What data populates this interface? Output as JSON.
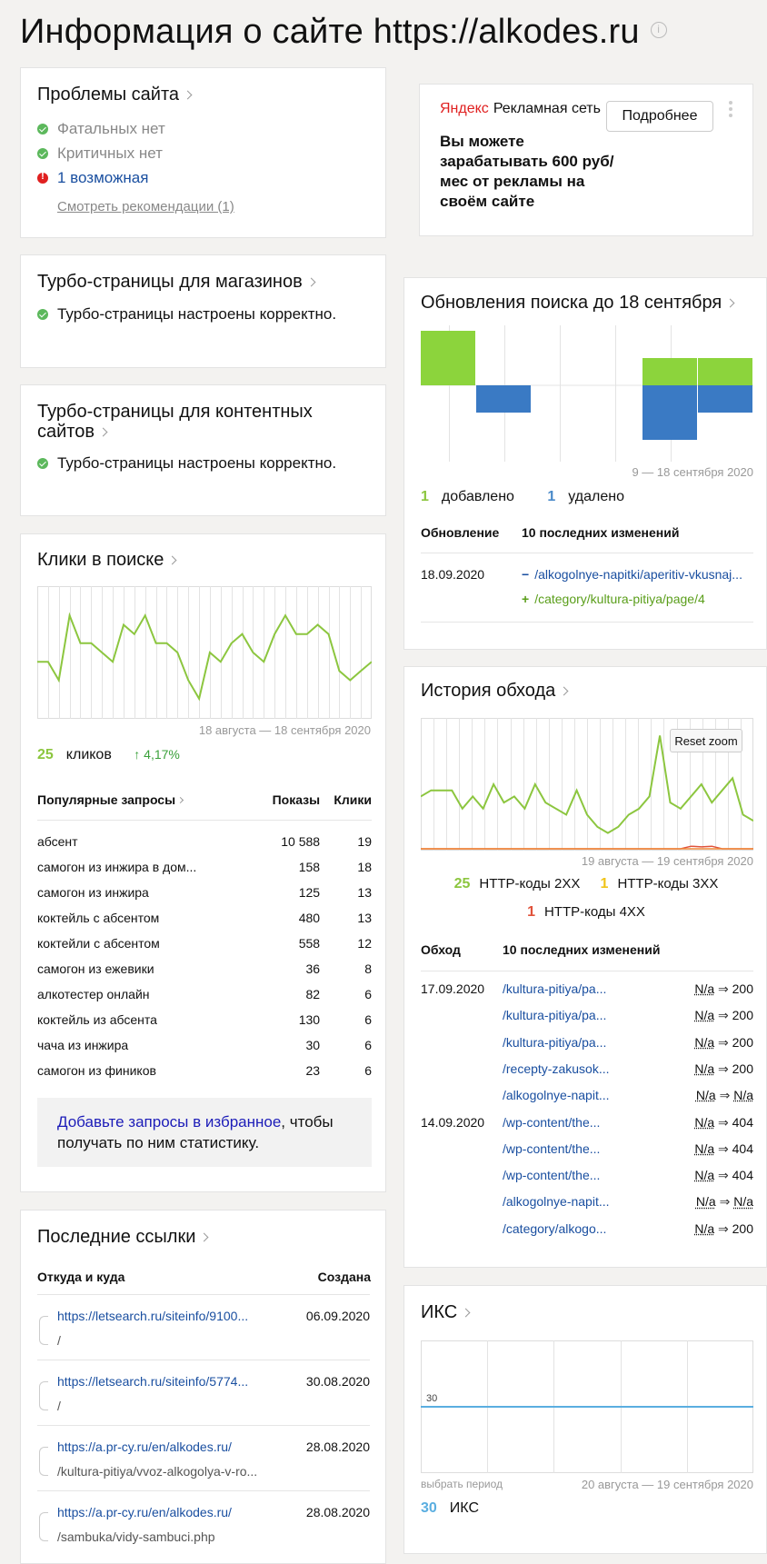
{
  "page": {
    "title": "Информация о сайте https://alkodes.ru",
    "info_icon": "info-icon"
  },
  "problems": {
    "title": "Проблемы сайта",
    "items": [
      {
        "icon": "check-icon",
        "text": "Фатальных нет"
      },
      {
        "icon": "check-icon",
        "text": "Критичных нет"
      },
      {
        "icon": "warning-icon",
        "text": "1 возможная"
      }
    ],
    "link": "Смотреть рекомендации (1)"
  },
  "ad": {
    "brand": "Яндекс",
    "network": "Рекламная сеть",
    "button": "Подробнее",
    "text": "Вы можете зарабатывать 600 руб/мес от рекламы на своём сайте"
  },
  "turbo_shops": {
    "title": "Турбо-страницы для магазинов",
    "status": "Турбо-страницы настроены корректно."
  },
  "turbo_content": {
    "title_line1": "Турбо-страницы для контентных",
    "title_line2": "сайтов",
    "status": "Турбо-страницы настроены корректно."
  },
  "clicks": {
    "title": "Клики в поиске",
    "period": "18 августа — 18 сентября 2020",
    "count": "25",
    "count_label": "кликов",
    "change": "↑ 4,17%",
    "queries_header": "Популярные запросы",
    "col_shows": "Показы",
    "col_clicks": "Клики",
    "rows": [
      {
        "q": "абсент",
        "shows": "10 588",
        "clicks": "19"
      },
      {
        "q": "самогон из инжира в дом...",
        "shows": "158",
        "clicks": "18"
      },
      {
        "q": "самогон из инжира",
        "shows": "125",
        "clicks": "13"
      },
      {
        "q": "коктейль с абсентом",
        "shows": "480",
        "clicks": "13"
      },
      {
        "q": "коктейли с абсентом",
        "shows": "558",
        "clicks": "12"
      },
      {
        "q": "самогон из ежевики",
        "shows": "36",
        "clicks": "8"
      },
      {
        "q": "алкотестер онлайн",
        "shows": "82",
        "clicks": "6"
      },
      {
        "q": "коктейль из абсента",
        "shows": "130",
        "clicks": "6"
      },
      {
        "q": "чача из инжира",
        "shows": "30",
        "clicks": "6"
      },
      {
        "q": "самогон из фиников",
        "shows": "23",
        "clicks": "6"
      }
    ],
    "favorite_link": "Добавьте запросы в избранное",
    "favorite_rest": ", чтобы получать по ним статистику."
  },
  "links": {
    "title": "Последние ссылки",
    "col_from": "Откуда и куда",
    "col_created": "Создана",
    "rows": [
      {
        "from": "https://letsearch.ru/siteinfo/9100...",
        "to": "/",
        "date": "06.09.2020"
      },
      {
        "from": "https://letsearch.ru/siteinfo/5774...",
        "to": "/",
        "date": "30.08.2020"
      },
      {
        "from": "https://a.pr-cy.ru/en/alkodes.ru/",
        "to": "/kultura-pitiya/vvoz-alkogolya-v-ro...",
        "date": "28.08.2020"
      },
      {
        "from": "https://a.pr-cy.ru/en/alkodes.ru/",
        "to": "/sambuka/vidy-sambuci.php",
        "date": "28.08.2020"
      }
    ]
  },
  "search_updates": {
    "title": "Обновления поиска до 18 сентября",
    "period": "9 — 18 сентября 2020",
    "added_n": "1",
    "added_label": "добавлено",
    "removed_n": "1",
    "removed_label": "удалено",
    "col_update": "Обновление",
    "col_changes": "10 последних изменений",
    "date": "18.09.2020",
    "changes": [
      {
        "sign": "−",
        "url": "/alkogolnye-napitki/aperitiv-vkusnaj..."
      },
      {
        "sign": "+",
        "url": "/category/kultura-pitiya/page/4"
      }
    ]
  },
  "crawl": {
    "title": "История обхода",
    "reset_zoom": "Reset zoom",
    "period": "19 августа — 19 сентября 2020",
    "legend": [
      {
        "n": "25",
        "label": "HTTP-коды 2XX",
        "color": "#8cc63f"
      },
      {
        "n": "1",
        "label": "HTTP-коды 3XX",
        "color": "#f0c419"
      },
      {
        "n": "1",
        "label": "HTTP-коды 4XX",
        "color": "#e0523a"
      }
    ],
    "col_crawl": "Обход",
    "col_changes": "10 последних изменений",
    "rows": [
      {
        "date": "17.09.2020",
        "url": "/kultura-pitiya/pa...",
        "from": "N/a",
        "to": "200"
      },
      {
        "date": "",
        "url": "/kultura-pitiya/pa...",
        "from": "N/a",
        "to": "200"
      },
      {
        "date": "",
        "url": "/kultura-pitiya/pa...",
        "from": "N/a",
        "to": "200"
      },
      {
        "date": "",
        "url": "/recepty-zakusok...",
        "from": "N/a",
        "to": "200"
      },
      {
        "date": "",
        "url": "/alkogolnye-napit...",
        "from": "N/a",
        "to": "N/a"
      },
      {
        "date": "14.09.2020",
        "url": "/wp-content/the...",
        "from": "N/a",
        "to": "404"
      },
      {
        "date": "",
        "url": "/wp-content/the...",
        "from": "N/a",
        "to": "404"
      },
      {
        "date": "",
        "url": "/wp-content/the...",
        "from": "N/a",
        "to": "404"
      },
      {
        "date": "",
        "url": "/alkogolnye-napit...",
        "from": "N/a",
        "to": "N/a"
      },
      {
        "date": "",
        "url": "/category/alkogo...",
        "from": "N/a",
        "to": "200"
      }
    ]
  },
  "iks": {
    "title": "ИКС",
    "value_label": "30",
    "choose_period": "выбрать период",
    "period": "20 августа — 19 сентября 2020",
    "n": "30",
    "n_label": "ИКС"
  },
  "chart_data": [
    {
      "type": "line",
      "name": "clicks",
      "series": [
        {
          "values": [
            5,
            5,
            3,
            10,
            7,
            7,
            6,
            5,
            9,
            8,
            10,
            7,
            7,
            6,
            3,
            1,
            6,
            5,
            7,
            8,
            6,
            5,
            8,
            10,
            8,
            8,
            9,
            8,
            4,
            3,
            4,
            5
          ]
        }
      ],
      "ylim": [
        0,
        12
      ]
    },
    {
      "type": "bar",
      "name": "search_updates",
      "series": [
        {
          "name": "добавлено",
          "values": [
            1,
            0,
            0,
            0,
            1,
            1
          ]
        },
        {
          "name": "удалено",
          "values": [
            0,
            1,
            0,
            0,
            2,
            1
          ]
        }
      ]
    },
    {
      "type": "line",
      "name": "crawl_history",
      "series": [
        {
          "name": "HTTP-коды 2XX",
          "values": [
            8,
            9,
            9,
            9,
            6,
            8,
            6,
            10,
            7,
            8,
            6,
            10,
            7,
            6,
            5,
            9,
            5,
            3,
            2,
            3,
            5,
            6,
            8,
            18,
            7,
            6,
            8,
            10,
            7,
            9,
            11,
            5,
            4
          ]
        },
        {
          "name": "HTTP-коды 3XX",
          "values": [
            0,
            0,
            0,
            0,
            0,
            0,
            0,
            0,
            0,
            0,
            0,
            0,
            0,
            0,
            0,
            0,
            0,
            0,
            0,
            0,
            0,
            0,
            0,
            0,
            0,
            0,
            0,
            0,
            0,
            0,
            0,
            0,
            0
          ]
        },
        {
          "name": "HTTP-коды 4XX",
          "values": [
            0,
            0,
            0,
            0,
            0,
            0,
            0,
            0,
            0,
            0,
            0,
            0,
            0,
            0,
            0,
            0,
            0,
            0,
            0,
            0,
            0,
            0,
            0,
            0,
            0,
            0,
            0.4,
            0.3,
            0.4,
            0,
            0,
            0,
            0
          ]
        }
      ],
      "ylim": [
        0,
        20
      ]
    },
    {
      "type": "line",
      "name": "iks",
      "series": [
        {
          "values": [
            30,
            30,
            30,
            30,
            30,
            30
          ]
        }
      ],
      "ylim": [
        0,
        60
      ]
    }
  ]
}
